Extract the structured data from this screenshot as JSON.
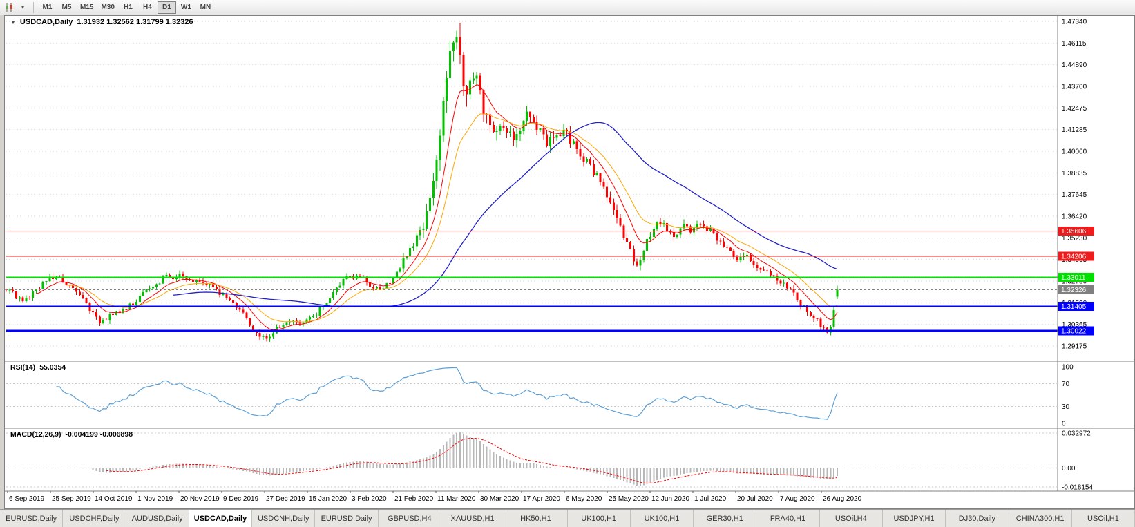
{
  "toolbar": {
    "timeframes": [
      "M1",
      "M5",
      "M15",
      "M30",
      "H1",
      "H4",
      "D1",
      "W1",
      "MN"
    ],
    "active_timeframe": "D1"
  },
  "chart": {
    "symbol_title": "USDCAD,Daily",
    "ohlc_line": "1.31932 1.32562 1.31799 1.32326"
  },
  "rsi_panel": {
    "name": "RSI(14)",
    "value": "55.0354",
    "axis_labels": [
      "100",
      "70",
      "30",
      "0"
    ],
    "axis_values": [
      100,
      70,
      30,
      0
    ]
  },
  "macd_panel": {
    "name": "MACD(12,26,9)",
    "values": "-0.004199 -0.006898",
    "axis_labels": [
      "0.032972",
      "0.00",
      "-0.018154"
    ]
  },
  "price_axis": {
    "ticks": [
      "1.47340",
      "1.46115",
      "1.44890",
      "1.43700",
      "1.42475",
      "1.41285",
      "1.40060",
      "1.38835",
      "1.37645",
      "1.36420",
      "1.35230",
      "1.34005",
      "1.32780",
      "1.31590",
      "1.30365",
      "1.29175"
    ]
  },
  "date_axis": {
    "ticks": [
      "6 Sep 2019",
      "25 Sep 2019",
      "14 Oct 2019",
      "1 Nov 2019",
      "20 Nov 2019",
      "9 Dec 2019",
      "27 Dec 2019",
      "15 Jan 2020",
      "3 Feb 2020",
      "21 Feb 2020",
      "11 Mar 2020",
      "30 Mar 2020",
      "17 Apr 2020",
      "6 May 2020",
      "25 May 2020",
      "12 Jun 2020",
      "1 Jul 2020",
      "20 Jul 2020",
      "7 Aug 2020",
      "26 Aug 2020"
    ]
  },
  "tabs": {
    "items": [
      "EURUSD,Daily",
      "USDCHF,Daily",
      "AUDUSD,Daily",
      "USDCAD,Daily",
      "USDCNH,Daily",
      "EURUSD,Daily",
      "GBPUSD,H4",
      "XAUUSD,H1",
      "HK50,H1",
      "UK100,H1",
      "UK100,H1",
      "GER30,H1",
      "FRA40,H1",
      "USOil,H4",
      "USDJPY,H1",
      "DJ30,Daily",
      "CHINA300,H1",
      "USOil,H1"
    ],
    "active_index": 3
  },
  "colors": {
    "bull": "#00c000",
    "bear": "#ff0000",
    "ma_fast": "#ff0000",
    "ma_mid": "#ffa500",
    "ma_slow": "#2020c8",
    "rsi": "#5c9fd6",
    "macd_hist": "#b8b8b8",
    "macd_signal": "#ff0000",
    "grid": "#dcdcdc",
    "current": "#808080"
  },
  "chart_data": {
    "type": "candlestick",
    "title": "USDCAD Daily",
    "x_range": [
      "6 Sep 2019",
      "4 Sep 2020"
    ],
    "y_top": 1.4734,
    "y_bottom": 1.29175,
    "num_candles": 250,
    "last_candle": {
      "open": 1.31932,
      "high": 1.32562,
      "low": 1.31799,
      "close": 1.32326
    },
    "price_path": [
      [
        0.0,
        1.3235
      ],
      [
        0.01,
        1.32
      ],
      [
        0.022,
        1.3175
      ],
      [
        0.035,
        1.323
      ],
      [
        0.05,
        1.329
      ],
      [
        0.062,
        1.33
      ],
      [
        0.075,
        1.325
      ],
      [
        0.088,
        1.3195
      ],
      [
        0.1,
        1.313
      ],
      [
        0.112,
        1.3062
      ],
      [
        0.125,
        1.3082
      ],
      [
        0.14,
        1.312
      ],
      [
        0.155,
        1.3162
      ],
      [
        0.17,
        1.323
      ],
      [
        0.188,
        1.3295
      ],
      [
        0.205,
        1.3312
      ],
      [
        0.225,
        1.3288
      ],
      [
        0.248,
        1.3255
      ],
      [
        0.265,
        1.3185
      ],
      [
        0.285,
        1.3095
      ],
      [
        0.3,
        1.2985
      ],
      [
        0.31,
        1.2962
      ],
      [
        0.322,
        1.3
      ],
      [
        0.338,
        1.3052
      ],
      [
        0.355,
        1.3045
      ],
      [
        0.372,
        1.3088
      ],
      [
        0.39,
        1.32
      ],
      [
        0.405,
        1.329
      ],
      [
        0.42,
        1.331
      ],
      [
        0.438,
        1.3262
      ],
      [
        0.452,
        1.3232
      ],
      [
        0.468,
        1.331
      ],
      [
        0.482,
        1.343
      ],
      [
        0.495,
        1.354
      ],
      [
        0.505,
        1.3635
      ],
      [
        0.512,
        1.378
      ],
      [
        0.52,
        1.406
      ],
      [
        0.528,
        1.434
      ],
      [
        0.535,
        1.457
      ],
      [
        0.54,
        1.464
      ],
      [
        0.547,
        1.448
      ],
      [
        0.553,
        1.43
      ],
      [
        0.56,
        1.438
      ],
      [
        0.565,
        1.442
      ],
      [
        0.572,
        1.428
      ],
      [
        0.58,
        1.418
      ],
      [
        0.588,
        1.4125
      ],
      [
        0.595,
        1.417
      ],
      [
        0.603,
        1.412
      ],
      [
        0.612,
        1.408
      ],
      [
        0.62,
        1.415
      ],
      [
        0.63,
        1.4225
      ],
      [
        0.64,
        1.413
      ],
      [
        0.65,
        1.406
      ],
      [
        0.66,
        1.409
      ],
      [
        0.67,
        1.413
      ],
      [
        0.68,
        1.406
      ],
      [
        0.69,
        1.399
      ],
      [
        0.7,
        1.394
      ],
      [
        0.712,
        1.386
      ],
      [
        0.725,
        1.375
      ],
      [
        0.738,
        1.36
      ],
      [
        0.75,
        1.345
      ],
      [
        0.758,
        1.337
      ],
      [
        0.765,
        1.342
      ],
      [
        0.775,
        1.3545
      ],
      [
        0.785,
        1.362
      ],
      [
        0.795,
        1.357
      ],
      [
        0.805,
        1.354
      ],
      [
        0.815,
        1.3592
      ],
      [
        0.825,
        1.356
      ],
      [
        0.835,
        1.3612
      ],
      [
        0.845,
        1.357
      ],
      [
        0.855,
        1.352
      ],
      [
        0.868,
        1.345
      ],
      [
        0.88,
        1.34
      ],
      [
        0.892,
        1.3422
      ],
      [
        0.903,
        1.337
      ],
      [
        0.915,
        1.3322
      ],
      [
        0.928,
        1.3292
      ],
      [
        0.94,
        1.3242
      ],
      [
        0.95,
        1.3192
      ],
      [
        0.96,
        1.3132
      ],
      [
        0.97,
        1.3092
      ],
      [
        0.98,
        1.304
      ],
      [
        0.988,
        1.3005
      ],
      [
        0.994,
        1.3062
      ],
      [
        1.0,
        1.3233
      ]
    ],
    "volatility_profile": [
      [
        0.0,
        0.0045
      ],
      [
        0.46,
        0.0045
      ],
      [
        0.5,
        0.009
      ],
      [
        0.52,
        0.014
      ],
      [
        0.545,
        0.018
      ],
      [
        0.57,
        0.012
      ],
      [
        0.62,
        0.009
      ],
      [
        0.7,
        0.0075
      ],
      [
        0.78,
        0.006
      ],
      [
        0.86,
        0.005
      ],
      [
        0.93,
        0.0045
      ],
      [
        1.0,
        0.005
      ]
    ],
    "moving_averages": [
      {
        "name": "fast",
        "type": "ema",
        "period": 9,
        "color_key": "ma_fast"
      },
      {
        "name": "mid",
        "type": "ema",
        "period": 18,
        "color_key": "ma_mid"
      },
      {
        "name": "slow",
        "type": "sma",
        "period": 50,
        "color_key": "ma_slow"
      }
    ],
    "horizontal_lines": [
      {
        "label": "1.35606",
        "value": 1.35606,
        "color": "#ee1c1c",
        "width": 1
      },
      {
        "label": "1.34206",
        "value": 1.34206,
        "color": "#ee1c1c",
        "width": 1
      },
      {
        "label": "1.33011",
        "value": 1.33011,
        "color": "#00e000",
        "width": 2
      },
      {
        "label": "1.31405",
        "value": 1.31405,
        "color": "#0000ff",
        "width": 2
      },
      {
        "label": "1.30022",
        "value": 1.30022,
        "color": "#0000ff",
        "width": 3
      }
    ],
    "current_price": {
      "label": "1.32326",
      "value": 1.32326,
      "color": "#808080"
    },
    "rsi": {
      "period": 14,
      "levels": [
        70,
        30
      ],
      "scale": [
        0,
        100
      ],
      "current": 55.0354
    },
    "macd": {
      "fast": 12,
      "slow": 26,
      "signal": 9,
      "scale_max": 0.032972,
      "scale_min": -0.018154,
      "current_macd": -0.004199,
      "current_signal": -0.006898
    }
  }
}
